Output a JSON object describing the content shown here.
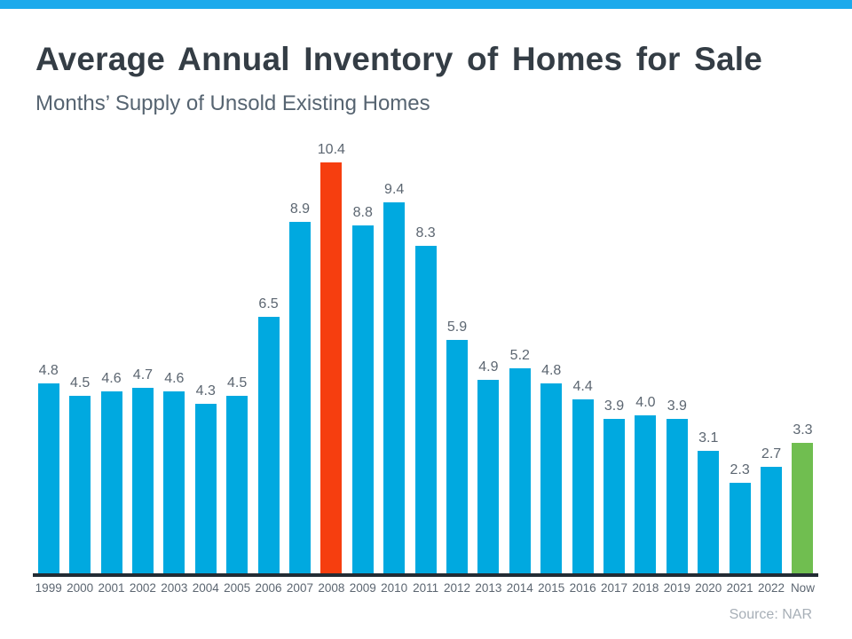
{
  "page": {
    "banner_color": "#1caaec"
  },
  "chart_data": {
    "type": "bar",
    "title": "Average Annual Inventory of Homes for Sale",
    "subtitle": "Months’ Supply of Unsold Existing Homes",
    "source": "Source: NAR",
    "categories": [
      "1999",
      "2000",
      "2001",
      "2002",
      "2003",
      "2004",
      "2005",
      "2006",
      "2007",
      "2008",
      "2009",
      "2010",
      "2011",
      "2012",
      "2013",
      "2014",
      "2015",
      "2016",
      "2017",
      "2018",
      "2019",
      "2020",
      "2021",
      "2022",
      "Now"
    ],
    "values": [
      4.8,
      4.5,
      4.6,
      4.7,
      4.6,
      4.3,
      4.5,
      6.5,
      8.9,
      10.4,
      8.8,
      9.4,
      8.3,
      5.9,
      4.9,
      5.2,
      4.8,
      4.4,
      3.9,
      4.0,
      3.9,
      3.1,
      2.3,
      2.7,
      3.3
    ],
    "value_labels": [
      "4.8",
      "4.5",
      "4.6",
      "4.7",
      "4.6",
      "4.3",
      "4.5",
      "6.5",
      "8.9",
      "10.4",
      "8.8",
      "9.4",
      "8.3",
      "5.9",
      "4.9",
      "5.2",
      "4.8",
      "4.4",
      "3.9",
      "4.0",
      "3.9",
      "3.1",
      "2.3",
      "2.7",
      "3.3"
    ],
    "bar_color": "#00a9e0",
    "highlight_colors": {
      "2008": "#f63e0f",
      "Now": "#70be50"
    },
    "axis_line_color": "#232c34",
    "label_color": "#5c6671",
    "xlabel": "",
    "ylabel": "",
    "ylim": [
      0,
      10.9
    ],
    "grid": false,
    "legend": false
  }
}
